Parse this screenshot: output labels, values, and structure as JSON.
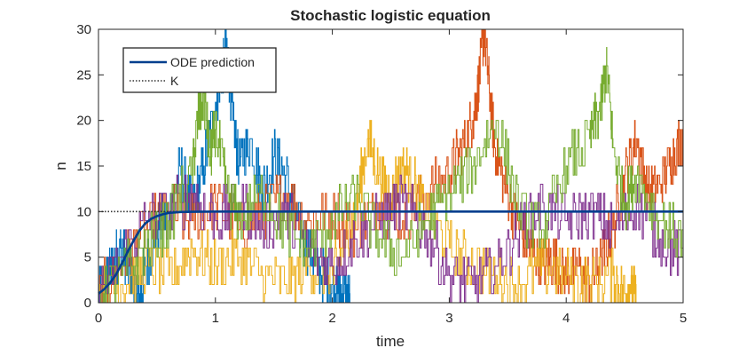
{
  "chart_data": {
    "type": "line",
    "title": "Stochastic logistic equation",
    "xlabel": "time",
    "ylabel": "n",
    "xlim": [
      0,
      5
    ],
    "ylim": [
      0,
      30
    ],
    "xticks": [
      0,
      1,
      2,
      3,
      4,
      5
    ],
    "yticks": [
      0,
      5,
      10,
      15,
      20,
      25,
      30
    ],
    "legend": {
      "placement": "top-left",
      "entries": [
        "ODE prediction",
        "K"
      ]
    },
    "K": 10,
    "ode_prediction": {
      "name": "ODE prediction",
      "color": "#003e8e",
      "x": [
        0,
        0.05,
        0.1,
        0.15,
        0.2,
        0.25,
        0.3,
        0.35,
        0.4,
        0.45,
        0.5,
        0.55,
        0.6,
        0.7,
        0.8,
        0.9,
        1.0,
        1.5,
        2,
        3,
        4,
        5
      ],
      "y": [
        1,
        1.5,
        2.2,
        3.1,
        4.3,
        5.6,
        6.8,
        7.9,
        8.7,
        9.2,
        9.5,
        9.7,
        9.85,
        9.95,
        9.98,
        9.99,
        10,
        10,
        10,
        10,
        10,
        10
      ]
    },
    "series": [
      {
        "color": "#0072bd",
        "x": [
          0,
          0.05,
          0.1,
          0.15,
          0.2,
          0.25,
          0.3,
          0.35,
          0.4,
          0.5,
          0.6,
          0.7,
          0.8,
          0.9,
          1.0,
          1.05,
          1.1,
          1.15,
          1.2,
          1.3,
          1.4,
          1.5,
          1.6,
          1.7,
          1.8,
          1.9,
          2.0,
          2.05,
          2.1,
          2.15
        ],
        "y": [
          1,
          2,
          3,
          5,
          6,
          4,
          2,
          0,
          4,
          8,
          10,
          15,
          10,
          15,
          22,
          25,
          28,
          20,
          15,
          18,
          12,
          16,
          14,
          9,
          6,
          3,
          2,
          1,
          1,
          0
        ]
      },
      {
        "color": "#d95319",
        "x": [
          0,
          0.2,
          0.4,
          0.6,
          0.8,
          1.0,
          1.2,
          1.4,
          1.6,
          1.8,
          2.0,
          2.2,
          2.4,
          2.6,
          2.8,
          3.0,
          3.1,
          3.2,
          3.25,
          3.3,
          3.35,
          3.4,
          3.5,
          3.6,
          3.7,
          3.8,
          3.9,
          4.0,
          4.1,
          4.2,
          4.3,
          4.4,
          4.5,
          4.6,
          4.7,
          4.8,
          4.9,
          5.0
        ],
        "y": [
          1,
          4,
          8,
          10,
          9,
          11,
          8,
          10,
          12,
          9,
          10,
          8,
          11,
          9,
          12,
          14,
          17,
          20,
          24,
          30,
          22,
          16,
          12,
          8,
          6,
          4,
          5,
          3,
          4,
          2,
          5,
          8,
          14,
          18,
          12,
          13,
          16,
          18
        ]
      },
      {
        "color": "#edb120",
        "x": [
          0,
          0.2,
          0.4,
          0.6,
          0.8,
          1.0,
          1.2,
          1.4,
          1.6,
          1.8,
          2.0,
          2.1,
          2.2,
          2.3,
          2.4,
          2.5,
          2.6,
          2.7,
          2.8,
          3.0,
          3.2,
          3.4,
          3.6,
          3.8,
          4.0,
          4.2,
          4.4,
          4.5,
          4.55,
          4.6
        ],
        "y": [
          1,
          2,
          4,
          3,
          6,
          4,
          5,
          3,
          2,
          4,
          3,
          6,
          10,
          18,
          14,
          12,
          15,
          13,
          10,
          6,
          4,
          3,
          2,
          4,
          3,
          2,
          3,
          1,
          2,
          0
        ]
      },
      {
        "color": "#7e2f8e",
        "x": [
          0,
          0.2,
          0.4,
          0.6,
          0.8,
          1.0,
          1.2,
          1.4,
          1.6,
          1.8,
          2.0,
          2.2,
          2.4,
          2.6,
          2.8,
          3.0,
          3.2,
          3.4,
          3.6,
          3.8,
          4.0,
          4.2,
          4.4,
          4.6,
          4.8,
          5.0
        ],
        "y": [
          1,
          5,
          9,
          10,
          12,
          9,
          11,
          8,
          10,
          6,
          4,
          7,
          9,
          11,
          8,
          3,
          2,
          4,
          8,
          11,
          9,
          10,
          8,
          11,
          7,
          5
        ]
      },
      {
        "color": "#77ac30",
        "x": [
          0,
          0.2,
          0.4,
          0.6,
          0.8,
          0.85,
          0.9,
          0.95,
          1.0,
          1.1,
          1.2,
          1.4,
          1.6,
          1.8,
          2.0,
          2.2,
          2.4,
          2.6,
          2.8,
          3.0,
          3.2,
          3.4,
          3.6,
          3.8,
          4.0,
          4.2,
          4.3,
          4.35,
          4.4,
          4.5,
          4.6,
          4.8,
          5.0
        ],
        "y": [
          1,
          3,
          6,
          9,
          14,
          20,
          23,
          16,
          19,
          12,
          9,
          12,
          8,
          6,
          9,
          12,
          7,
          5,
          9,
          12,
          15,
          20,
          10,
          8,
          15,
          18,
          22,
          26,
          17,
          11,
          14,
          9,
          7
        ]
      }
    ]
  }
}
